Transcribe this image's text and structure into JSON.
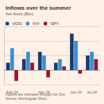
{
  "chart_data": {
    "type": "bar",
    "title": "Inflows over the summer",
    "subtitle": "Net flows ($bn)",
    "categories": [
      "Feb 24",
      null,
      "Apr 24",
      null,
      "Jun 24",
      "Jul 24"
    ],
    "series": [
      {
        "name": "VOO",
        "color": "#1f3a6e",
        "values": [
          2,
          3,
          5,
          2,
          10,
          4
        ]
      },
      {
        "name": "IVV",
        "color": "#3a8fd6",
        "values": [
          6,
          5,
          4,
          3,
          8,
          5
        ]
      },
      {
        "name": "SPY",
        "color": "#a0142e",
        "values": [
          -3,
          2,
          -2,
          1,
          -1,
          3
        ]
      }
    ],
    "ylim": [
      -4,
      12
    ],
    "yticks": [
      -4,
      0,
      4,
      8,
      12
    ],
    "grid": true,
    "legend": "top",
    "tick_labels": "x",
    "note": "Figures are estimates through the 21st",
    "source": "Source: Morningstar Direct"
  }
}
